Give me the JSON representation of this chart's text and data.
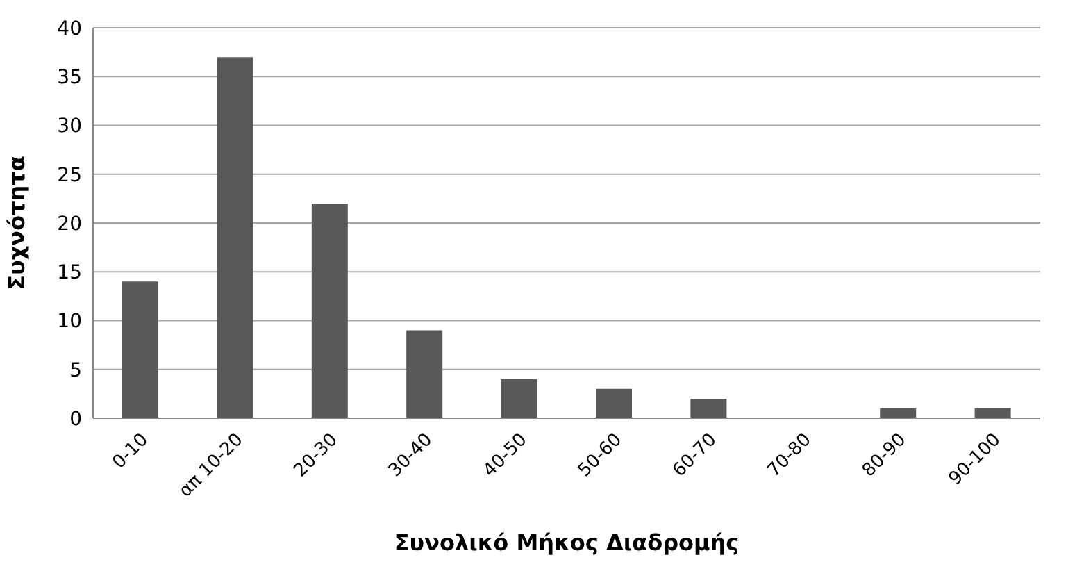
{
  "chart_data": {
    "type": "bar",
    "xlabel": "Συνολικό Μήκος Διαδρομής",
    "ylabel": "Συχνότητα",
    "categories": [
      "0-10",
      "απ 10-20",
      "20-30",
      "30-40",
      "40-50",
      "50-60",
      "60-70",
      "70-80",
      "80-90",
      "90-100"
    ],
    "values": [
      14,
      37,
      22,
      9,
      4,
      3,
      2,
      0,
      1,
      1
    ],
    "color": "#595959",
    "ylim": [
      0,
      40
    ],
    "yticks": [
      0,
      5,
      10,
      15,
      20,
      25,
      30,
      35,
      40
    ],
    "grid": "y"
  }
}
